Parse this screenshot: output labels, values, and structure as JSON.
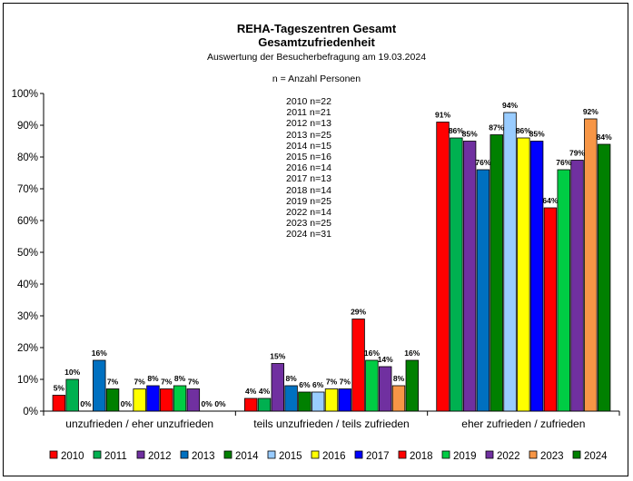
{
  "chart_data": {
    "type": "bar",
    "title": "REHA-Tageszentren Gesamt",
    "subtitle": "Gesamtzufriedenheit",
    "note": "Auswertung der Besucherbefragung am 19.03.2024",
    "n_note": "n = Anzahl Personen",
    "n_list": [
      "2010 n=22",
      "2011 n=21",
      "2012 n=13",
      "2013 n=25",
      "2014 n=15",
      "2015 n=16",
      "2016 n=14",
      "2017 n=13",
      "2018 n=14",
      "2019 n=25",
      "2022 n=14",
      "2023 n=25",
      "2024 n=31"
    ],
    "categories": [
      "unzufrieden / eher unzufrieden",
      "teils unzufrieden / teils zufrieden",
      "eher zufrieden / zufrieden"
    ],
    "ylim": [
      0,
      100
    ],
    "yticks": [
      "0%",
      "10%",
      "20%",
      "30%",
      "40%",
      "50%",
      "60%",
      "70%",
      "80%",
      "90%",
      "100%"
    ],
    "legend_position": "bottom",
    "series": [
      {
        "name": "2010",
        "color": "#ff0000",
        "values": [
          5,
          4,
          91
        ],
        "labels": [
          "5%",
          "4%",
          "91%"
        ]
      },
      {
        "name": "2011",
        "color": "#00b050",
        "values": [
          10,
          4,
          86
        ],
        "labels": [
          "10%",
          "4%",
          "86%"
        ]
      },
      {
        "name": "2012",
        "color": "#7030a0",
        "values": [
          0,
          15,
          85
        ],
        "labels": [
          "0%",
          "15%",
          "85%"
        ]
      },
      {
        "name": "2013",
        "color": "#0070c0",
        "values": [
          16,
          8,
          76
        ],
        "labels": [
          "16%",
          "8%",
          "76%"
        ]
      },
      {
        "name": "2014",
        "color": "#008000",
        "values": [
          7,
          6,
          87
        ],
        "labels": [
          "7%",
          "6%",
          "87%"
        ]
      },
      {
        "name": "2015",
        "color": "#99ccff",
        "values": [
          0,
          6,
          94
        ],
        "labels": [
          "0%",
          "6%",
          "94%"
        ]
      },
      {
        "name": "2016",
        "color": "#ffff00",
        "values": [
          7,
          7,
          86
        ],
        "labels": [
          "7%",
          "7%",
          "86%"
        ]
      },
      {
        "name": "2017",
        "color": "#0000ff",
        "values": [
          8,
          7,
          85
        ],
        "labels": [
          "8%",
          "7%",
          "85%"
        ]
      },
      {
        "name": "2018",
        "color": "#ff0000",
        "values": [
          7,
          29,
          64
        ],
        "labels": [
          "7%",
          "29%",
          "64%"
        ]
      },
      {
        "name": "2019",
        "color": "#00cc44",
        "values": [
          8,
          16,
          76
        ],
        "labels": [
          "8%",
          "16%",
          "76%"
        ]
      },
      {
        "name": "2022",
        "color": "#7030a0",
        "values": [
          7,
          14,
          79
        ],
        "labels": [
          "7%",
          "14%",
          "79%"
        ]
      },
      {
        "name": "2023",
        "color": "#f79646",
        "values": [
          0,
          8,
          92
        ],
        "labels": [
          "0%",
          "8%",
          "92%"
        ]
      },
      {
        "name": "2024",
        "color": "#008000",
        "values": [
          0,
          16,
          84
        ],
        "labels": [
          "0%",
          "16%",
          "84%"
        ]
      }
    ]
  }
}
